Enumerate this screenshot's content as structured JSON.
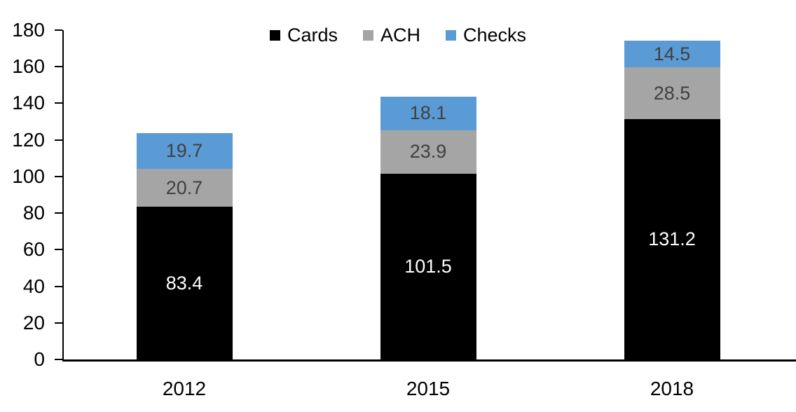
{
  "chart_data": {
    "type": "bar",
    "stacked": true,
    "title": "",
    "categories": [
      "2012",
      "2015",
      "2018"
    ],
    "series": [
      {
        "name": "Cards",
        "color": "#000000",
        "label_color": "#ffffff",
        "values": [
          83.4,
          101.5,
          131.2
        ]
      },
      {
        "name": "ACH",
        "color": "#a5a5a5",
        "label_color": "#404040",
        "values": [
          20.7,
          23.9,
          28.5
        ]
      },
      {
        "name": "Checks",
        "color": "#5b9bd5",
        "label_color": "#404040",
        "values": [
          19.7,
          18.1,
          14.5
        ]
      }
    ],
    "totals": [
      123.8,
      143.5,
      174.2
    ],
    "xlabel": "",
    "ylabel": "",
    "ylim": [
      0,
      180
    ],
    "yticks": [
      0,
      20,
      40,
      60,
      80,
      100,
      120,
      140,
      160,
      180
    ],
    "grid": false,
    "legend_position": "top",
    "value_label_decimals": 1,
    "axis_color": "#000000",
    "tick_label_color": "#000000",
    "background_color": "#ffffff"
  }
}
